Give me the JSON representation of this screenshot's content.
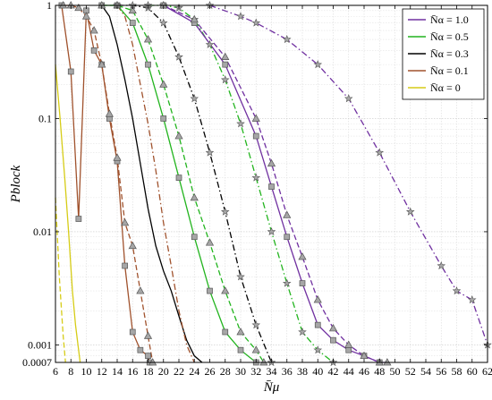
{
  "chart_data": {
    "type": "line",
    "xlabel": "N̄μ",
    "ylabel": "Pblock",
    "x_ticks": [
      6,
      8,
      10,
      12,
      14,
      16,
      18,
      20,
      22,
      24,
      26,
      28,
      30,
      32,
      34,
      36,
      38,
      40,
      42,
      44,
      46,
      48,
      50,
      52,
      54,
      56,
      58,
      60,
      62
    ],
    "y_ticks": [
      {
        "value": 1,
        "label": "1"
      },
      {
        "value": 0.1,
        "label": "0.1"
      },
      {
        "value": 0.01,
        "label": "0.01"
      },
      {
        "value": 0.001,
        "label": "0.001"
      },
      {
        "value": 0.0007,
        "label": "0.0007"
      }
    ],
    "xlim": [
      6,
      62
    ],
    "ylim": [
      0.0007,
      1
    ],
    "y_scale": "log",
    "grid": true,
    "legend_position": "top-right",
    "legend": [
      {
        "label": "N̄α = 1.0",
        "color": "#7030a0"
      },
      {
        "label": "N̄α = 0.5",
        "color": "#22b41e"
      },
      {
        "label": "N̄α = 0.3",
        "color": "#000000"
      },
      {
        "label": "N̄α = 0.1",
        "color": "#a0522d"
      },
      {
        "label": "N̄α = 0",
        "color": "#d6cc16"
      }
    ],
    "series": [
      {
        "color": "#d6cc16",
        "style": "solid",
        "marker": "none",
        "x": [
          6,
          6.6,
          7.2,
          7.7,
          8.2,
          8.6,
          9.0,
          9.2
        ],
        "y": [
          0.3,
          0.1,
          0.03,
          0.01,
          0.003,
          0.0015,
          0.0009,
          0.0007
        ]
      },
      {
        "color": "#d6cc16",
        "style": "dashed",
        "marker": "none",
        "x": [
          6,
          6.5,
          7.0,
          7.3
        ],
        "y": [
          0.02,
          0.004,
          0.0012,
          0.0007
        ]
      },
      {
        "color": "#a0522d",
        "style": "solid",
        "marker": "square",
        "x": [
          6.8,
          8,
          9,
          10,
          11,
          12,
          13,
          14,
          15,
          16,
          17,
          18,
          18.2
        ],
        "y": [
          1,
          0.26,
          0.013,
          0.9,
          0.4,
          0.3,
          0.1,
          0.042,
          0.005,
          0.0013,
          0.0009,
          0.0008,
          0.0007
        ]
      },
      {
        "color": "#a0522d",
        "style": "dashed",
        "marker": "triangle",
        "x": [
          7,
          8,
          9,
          10,
          11,
          12,
          13,
          14,
          15,
          16,
          17,
          18,
          18.6
        ],
        "y": [
          1,
          1,
          0.95,
          0.8,
          0.6,
          0.3,
          0.11,
          0.045,
          0.012,
          0.0075,
          0.003,
          0.0012,
          0.0007
        ]
      },
      {
        "color": "#000000",
        "style": "solid",
        "marker": "none",
        "x": [
          12,
          13,
          14,
          15,
          16,
          17,
          18,
          19,
          20,
          21,
          22,
          23,
          24,
          25
        ],
        "y": [
          1,
          0.8,
          0.45,
          0.22,
          0.1,
          0.04,
          0.016,
          0.0075,
          0.0045,
          0.003,
          0.0018,
          0.0011,
          0.0008,
          0.0007
        ]
      },
      {
        "color": "#a0522d",
        "style": "dashdot",
        "marker": "none",
        "x": [
          14,
          15,
          16,
          17,
          18,
          19,
          20,
          21,
          22,
          23,
          24
        ],
        "y": [
          1,
          0.8,
          0.45,
          0.2,
          0.09,
          0.035,
          0.012,
          0.005,
          0.002,
          0.001,
          0.0007
        ]
      },
      {
        "color": "#22b41e",
        "style": "solid",
        "marker": "square",
        "x": [
          12,
          14,
          16,
          18,
          20,
          22,
          24,
          26,
          28,
          30,
          32
        ],
        "y": [
          1,
          1,
          0.7,
          0.3,
          0.1,
          0.03,
          0.009,
          0.003,
          0.0013,
          0.0009,
          0.0007
        ]
      },
      {
        "color": "#22b41e",
        "style": "dashed",
        "marker": "triangle",
        "x": [
          12,
          14,
          16,
          18,
          20,
          22,
          24,
          26,
          28,
          30,
          32,
          33
        ],
        "y": [
          1,
          1,
          0.9,
          0.5,
          0.2,
          0.07,
          0.02,
          0.008,
          0.003,
          0.0013,
          0.0009,
          0.0007
        ]
      },
      {
        "color": "#000000",
        "style": "dashdot",
        "marker": "star",
        "x": [
          14,
          16,
          18,
          20,
          22,
          24,
          26,
          28,
          30,
          32,
          34
        ],
        "y": [
          1,
          1,
          0.95,
          0.7,
          0.35,
          0.15,
          0.05,
          0.015,
          0.004,
          0.0015,
          0.0007
        ]
      },
      {
        "color": "#22b41e",
        "style": "dashdot",
        "marker": "star",
        "x": [
          18,
          20,
          22,
          24,
          26,
          28,
          30,
          32,
          34,
          36,
          38,
          40,
          42
        ],
        "y": [
          1,
          1,
          0.95,
          0.75,
          0.45,
          0.22,
          0.09,
          0.03,
          0.01,
          0.0035,
          0.0013,
          0.0009,
          0.0007
        ]
      },
      {
        "color": "#7030a0",
        "style": "solid",
        "marker": "square",
        "x": [
          20,
          24,
          28,
          32,
          34,
          36,
          38,
          40,
          42,
          44,
          46,
          48
        ],
        "y": [
          1,
          0.7,
          0.3,
          0.07,
          0.025,
          0.009,
          0.0035,
          0.0015,
          0.0011,
          0.0009,
          0.0008,
          0.0007
        ]
      },
      {
        "color": "#7030a0",
        "style": "dashed",
        "marker": "triangle",
        "x": [
          20,
          24,
          28,
          32,
          34,
          36,
          38,
          40,
          42,
          44,
          46,
          48,
          49
        ],
        "y": [
          1,
          0.75,
          0.35,
          0.1,
          0.04,
          0.014,
          0.006,
          0.0025,
          0.0014,
          0.001,
          0.0008,
          0.0007,
          0.0007
        ]
      },
      {
        "color": "#7030a0",
        "style": "dashdot",
        "marker": "star",
        "x": [
          26,
          30,
          32,
          36,
          40,
          44,
          48,
          52,
          56,
          58,
          60,
          62
        ],
        "y": [
          1,
          0.8,
          0.7,
          0.5,
          0.3,
          0.15,
          0.05,
          0.015,
          0.005,
          0.003,
          0.0025,
          0.001
        ]
      }
    ]
  }
}
